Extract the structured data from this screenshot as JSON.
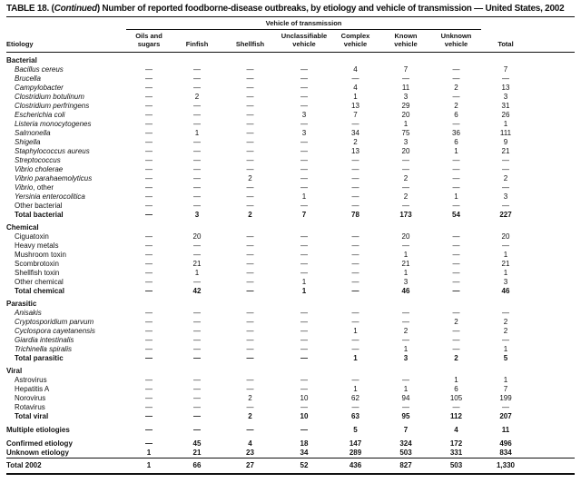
{
  "title": {
    "prefix": "TABLE 18. (",
    "continued": "Continued",
    "suffix": ") Number of reported foodborne-disease outbreaks, by etiology and vehicle of transmission — United States, 2002"
  },
  "table": {
    "spanner_label": "Vehicle of transmission",
    "columns": [
      {
        "slug": "etiology",
        "line1": "",
        "line2": "Etiology"
      },
      {
        "slug": "oils-sugars",
        "line1": "Oils and",
        "line2": "sugars"
      },
      {
        "slug": "finfish",
        "line1": "",
        "line2": "Finfish"
      },
      {
        "slug": "shellfish",
        "line1": "",
        "line2": "Shellfish"
      },
      {
        "slug": "unclassifiable",
        "line1": "Unclassifiable",
        "line2": "vehicle"
      },
      {
        "slug": "complex",
        "line1": "Complex",
        "line2": "vehicle"
      },
      {
        "slug": "known",
        "line1": "Known",
        "line2": "vehicle"
      },
      {
        "slug": "unknown",
        "line1": "Unknown",
        "line2": "vehicle"
      },
      {
        "slug": "total",
        "line1": "",
        "line2": "Total"
      },
      {
        "slug": "spacer",
        "line1": "",
        "line2": ""
      }
    ],
    "rows": [
      {
        "type": "section",
        "label": "Bacterial"
      },
      {
        "type": "row",
        "em": "Bacillus cereus",
        "rest": "",
        "indent": true,
        "bold": false,
        "cells": [
          "—",
          "—",
          "—",
          "—",
          "4",
          "7",
          "—",
          "7"
        ]
      },
      {
        "type": "row",
        "em": "Brucella",
        "rest": "",
        "indent": true,
        "bold": false,
        "cells": [
          "—",
          "—",
          "—",
          "—",
          "—",
          "—",
          "—",
          "—"
        ]
      },
      {
        "type": "row",
        "em": "Campylobacter",
        "rest": "",
        "indent": true,
        "bold": false,
        "cells": [
          "—",
          "—",
          "—",
          "—",
          "4",
          "11",
          "2",
          "13"
        ]
      },
      {
        "type": "row",
        "em": "Clostridium botulinum",
        "rest": "",
        "indent": true,
        "bold": false,
        "cells": [
          "—",
          "2",
          "—",
          "—",
          "1",
          "3",
          "—",
          "3"
        ]
      },
      {
        "type": "row",
        "em": "Clostridium perfringens",
        "rest": "",
        "indent": true,
        "bold": false,
        "cells": [
          "—",
          "—",
          "—",
          "—",
          "13",
          "29",
          "2",
          "31"
        ]
      },
      {
        "type": "row",
        "em": "Escherichia coli",
        "rest": "",
        "indent": true,
        "bold": false,
        "cells": [
          "—",
          "—",
          "—",
          "3",
          "7",
          "20",
          "6",
          "26"
        ]
      },
      {
        "type": "row",
        "em": "Listeria monocytogenes",
        "rest": "",
        "indent": true,
        "bold": false,
        "cells": [
          "—",
          "—",
          "—",
          "—",
          "—",
          "1",
          "—",
          "1"
        ]
      },
      {
        "type": "row",
        "em": "Salmonella",
        "rest": "",
        "indent": true,
        "bold": false,
        "cells": [
          "—",
          "1",
          "—",
          "3",
          "34",
          "75",
          "36",
          "111"
        ]
      },
      {
        "type": "row",
        "em": "Shigella",
        "rest": "",
        "indent": true,
        "bold": false,
        "cells": [
          "—",
          "—",
          "—",
          "—",
          "2",
          "3",
          "6",
          "9"
        ]
      },
      {
        "type": "row",
        "em": "Staphylococcus aureus",
        "rest": "",
        "indent": true,
        "bold": false,
        "cells": [
          "—",
          "—",
          "—",
          "—",
          "13",
          "20",
          "1",
          "21"
        ]
      },
      {
        "type": "row",
        "em": "Streptococcus",
        "rest": "",
        "indent": true,
        "bold": false,
        "cells": [
          "—",
          "—",
          "—",
          "—",
          "—",
          "—",
          "—",
          "—"
        ]
      },
      {
        "type": "row",
        "em": "Vibrio cholerae",
        "rest": "",
        "indent": true,
        "bold": false,
        "cells": [
          "—",
          "—",
          "—",
          "—",
          "—",
          "—",
          "—",
          "—"
        ]
      },
      {
        "type": "row",
        "em": "Vibrio parahaemolyticus",
        "rest": "",
        "indent": true,
        "bold": false,
        "cells": [
          "—",
          "—",
          "2",
          "—",
          "—",
          "2",
          "—",
          "2"
        ]
      },
      {
        "type": "row",
        "em": "Vibrio",
        "rest": ", other",
        "indent": true,
        "bold": false,
        "cells": [
          "—",
          "—",
          "—",
          "—",
          "—",
          "—",
          "—",
          "—"
        ]
      },
      {
        "type": "row",
        "em": "Yersinia enterocolitica",
        "rest": "",
        "indent": true,
        "bold": false,
        "cells": [
          "—",
          "—",
          "—",
          "1",
          "—",
          "2",
          "1",
          "3"
        ]
      },
      {
        "type": "row",
        "em": "",
        "rest": "Other bacterial",
        "indent": true,
        "bold": false,
        "cells": [
          "—",
          "—",
          "—",
          "—",
          "—",
          "—",
          "—",
          "—"
        ]
      },
      {
        "type": "row",
        "em": "",
        "rest": "Total bacterial",
        "indent": true,
        "bold": true,
        "cells": [
          "—",
          "3",
          "2",
          "7",
          "78",
          "173",
          "54",
          "227"
        ]
      },
      {
        "type": "section",
        "label": "Chemical"
      },
      {
        "type": "row",
        "em": "",
        "rest": "Ciguatoxin",
        "indent": true,
        "bold": false,
        "cells": [
          "—",
          "20",
          "—",
          "—",
          "—",
          "20",
          "—",
          "20"
        ]
      },
      {
        "type": "row",
        "em": "",
        "rest": "Heavy metals",
        "indent": true,
        "bold": false,
        "cells": [
          "—",
          "—",
          "—",
          "—",
          "—",
          "—",
          "—",
          "—"
        ]
      },
      {
        "type": "row",
        "em": "",
        "rest": "Mushroom toxin",
        "indent": true,
        "bold": false,
        "cells": [
          "—",
          "—",
          "—",
          "—",
          "—",
          "1",
          "—",
          "1"
        ]
      },
      {
        "type": "row",
        "em": "",
        "rest": "Scombrotoxin",
        "indent": true,
        "bold": false,
        "cells": [
          "—",
          "21",
          "—",
          "—",
          "—",
          "21",
          "—",
          "21"
        ]
      },
      {
        "type": "row",
        "em": "",
        "rest": "Shellfish toxin",
        "indent": true,
        "bold": false,
        "cells": [
          "—",
          "1",
          "—",
          "—",
          "—",
          "1",
          "—",
          "1"
        ]
      },
      {
        "type": "row",
        "em": "",
        "rest": "Other chemical",
        "indent": true,
        "bold": false,
        "cells": [
          "—",
          "—",
          "—",
          "1",
          "—",
          "3",
          "—",
          "3"
        ]
      },
      {
        "type": "row",
        "em": "",
        "rest": "Total chemical",
        "indent": true,
        "bold": true,
        "cells": [
          "—",
          "42",
          "—",
          "1",
          "—",
          "46",
          "—",
          "46"
        ]
      },
      {
        "type": "section",
        "label": "Parasitic"
      },
      {
        "type": "row",
        "em": "Anisakis",
        "rest": "",
        "indent": true,
        "bold": false,
        "cells": [
          "—",
          "—",
          "—",
          "—",
          "—",
          "—",
          "—",
          "—"
        ]
      },
      {
        "type": "row",
        "em": "Cryptosporidium parvum",
        "rest": "",
        "indent": true,
        "bold": false,
        "cells": [
          "—",
          "—",
          "—",
          "—",
          "—",
          "—",
          "2",
          "2"
        ]
      },
      {
        "type": "row",
        "em": "Cyclospora cayetanensis",
        "rest": "",
        "indent": true,
        "bold": false,
        "cells": [
          "—",
          "—",
          "—",
          "—",
          "1",
          "2",
          "—",
          "2"
        ]
      },
      {
        "type": "row",
        "em": "Giardia intestinalis",
        "rest": "",
        "indent": true,
        "bold": false,
        "cells": [
          "—",
          "—",
          "—",
          "—",
          "—",
          "—",
          "—",
          "—"
        ]
      },
      {
        "type": "row",
        "em": "Trichinella spiralis",
        "rest": "",
        "indent": true,
        "bold": false,
        "cells": [
          "—",
          "—",
          "—",
          "—",
          "—",
          "1",
          "—",
          "1"
        ]
      },
      {
        "type": "row",
        "em": "",
        "rest": "Total parasitic",
        "indent": true,
        "bold": true,
        "cells": [
          "—",
          "—",
          "—",
          "—",
          "1",
          "3",
          "2",
          "5"
        ]
      },
      {
        "type": "section",
        "label": "Viral"
      },
      {
        "type": "row",
        "em": "",
        "rest": "Astrovirus",
        "indent": true,
        "bold": false,
        "cells": [
          "—",
          "—",
          "—",
          "—",
          "—",
          "—",
          "1",
          "1"
        ]
      },
      {
        "type": "row",
        "em": "",
        "rest": "Hepatitis A",
        "indent": true,
        "bold": false,
        "cells": [
          "—",
          "—",
          "—",
          "—",
          "1",
          "1",
          "6",
          "7"
        ]
      },
      {
        "type": "row",
        "em": "",
        "rest": "Norovirus",
        "indent": true,
        "bold": false,
        "cells": [
          "—",
          "—",
          "2",
          "10",
          "62",
          "94",
          "105",
          "199"
        ]
      },
      {
        "type": "row",
        "em": "",
        "rest": "Rotavirus",
        "indent": true,
        "bold": false,
        "cells": [
          "—",
          "—",
          "—",
          "—",
          "—",
          "—",
          "—",
          "—"
        ]
      },
      {
        "type": "row",
        "em": "",
        "rest": "Total viral",
        "indent": true,
        "bold": true,
        "cells": [
          "—",
          "—",
          "2",
          "10",
          "63",
          "95",
          "112",
          "207"
        ]
      },
      {
        "type": "row",
        "em": "",
        "rest": "Multiple etiologies",
        "indent": false,
        "bold": true,
        "gap": true,
        "cells": [
          "—",
          "—",
          "—",
          "—",
          "5",
          "7",
          "4",
          "11"
        ]
      },
      {
        "type": "row",
        "em": "",
        "rest": "Confirmed etiology",
        "indent": false,
        "bold": true,
        "gap": true,
        "cells": [
          "—",
          "45",
          "4",
          "18",
          "147",
          "324",
          "172",
          "496"
        ]
      },
      {
        "type": "row",
        "em": "",
        "rest": "Unknown etiology",
        "indent": false,
        "bold": true,
        "cells": [
          "1",
          "21",
          "23",
          "34",
          "289",
          "503",
          "331",
          "834"
        ]
      },
      {
        "type": "row",
        "em": "",
        "rest": "Total 2002",
        "indent": false,
        "bold": true,
        "grand": true,
        "cells": [
          "1",
          "66",
          "27",
          "52",
          "436",
          "827",
          "503",
          "1,330"
        ]
      }
    ]
  }
}
